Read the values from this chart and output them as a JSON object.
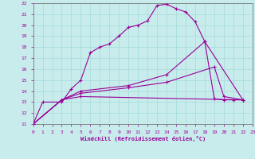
{
  "xlabel": "Windchill (Refroidissement éolien,°C)",
  "bg_color": "#c8ecec",
  "grid_color": "#aadddd",
  "line_color": "#990099",
  "xlim": [
    0,
    23
  ],
  "ylim": [
    11,
    22
  ],
  "xticks": [
    0,
    1,
    2,
    3,
    4,
    5,
    6,
    7,
    8,
    9,
    10,
    11,
    12,
    13,
    14,
    15,
    16,
    17,
    18,
    19,
    20,
    21,
    22,
    23
  ],
  "yticks": [
    11,
    12,
    13,
    14,
    15,
    16,
    17,
    18,
    19,
    20,
    21,
    22
  ],
  "series": [
    {
      "x": [
        0,
        1,
        3,
        4,
        5,
        6,
        7,
        8,
        9,
        10,
        11,
        12,
        13,
        14,
        15,
        16,
        17,
        18,
        19,
        20,
        21,
        22
      ],
      "y": [
        11,
        13,
        13,
        14.2,
        15.0,
        17.5,
        18.0,
        18.3,
        19.0,
        19.8,
        20.0,
        20.4,
        21.8,
        21.9,
        21.5,
        21.2,
        20.3,
        18.5,
        13.3,
        13.2,
        13.2,
        13.2
      ]
    },
    {
      "x": [
        0,
        3,
        5,
        22
      ],
      "y": [
        11,
        13.2,
        13.5,
        13.2
      ]
    },
    {
      "x": [
        0,
        3,
        5,
        10,
        14,
        19,
        20,
        22
      ],
      "y": [
        11,
        13.2,
        13.8,
        14.3,
        14.8,
        16.2,
        13.5,
        13.2
      ]
    },
    {
      "x": [
        0,
        3,
        5,
        10,
        14,
        18,
        22
      ],
      "y": [
        11,
        13.2,
        14.0,
        14.5,
        15.5,
        18.5,
        13.2
      ]
    }
  ]
}
